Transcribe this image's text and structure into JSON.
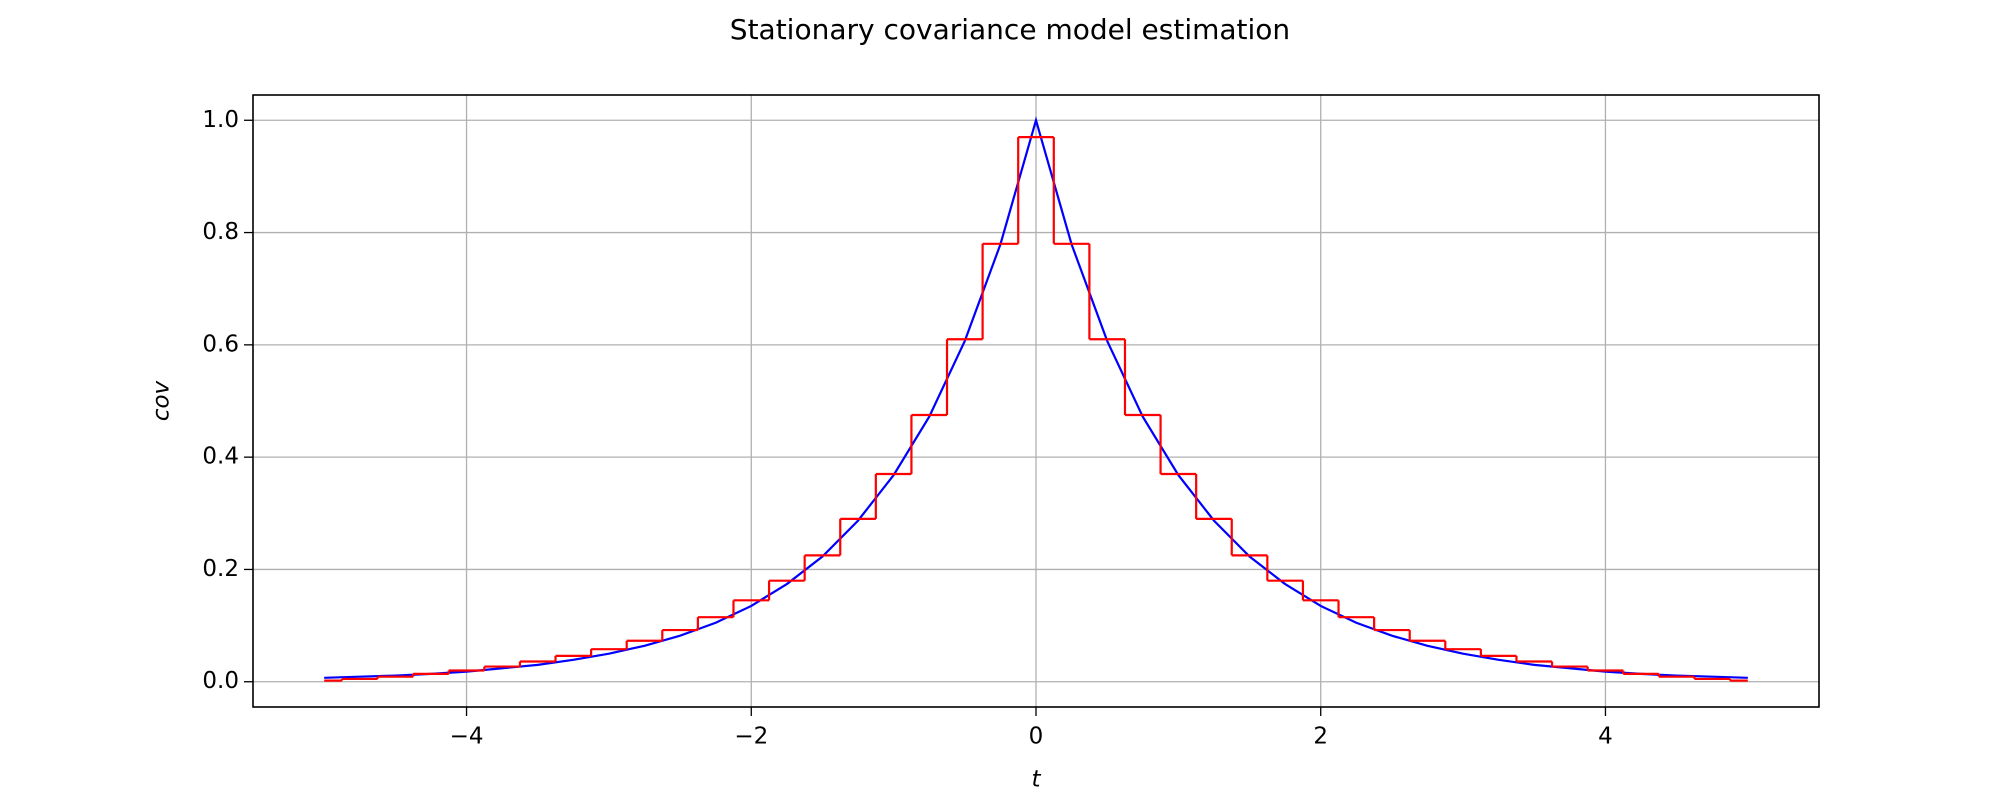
{
  "chart_data": {
    "type": "line",
    "title": "Stationary covariance model estimation",
    "xlabel": "t",
    "ylabel": "cov",
    "xlim": [
      -5.5,
      5.5
    ],
    "ylim": [
      -0.045,
      1.045
    ],
    "xticks": [
      {
        "value": -4,
        "label": "−4"
      },
      {
        "value": -2,
        "label": "−2"
      },
      0,
      2,
      4
    ],
    "yticks": [
      {
        "value": 0,
        "label": "0.0"
      },
      0.2,
      0.4,
      0.6,
      0.8,
      {
        "value": 1,
        "label": "1.0"
      }
    ],
    "grid": true,
    "series": [
      {
        "color": "#0000ff",
        "drawstyle": "default",
        "x": [
          -5,
          -4.75,
          -4.5,
          -4.25,
          -4,
          -3.75,
          -3.5,
          -3.25,
          -3,
          -2.75,
          -2.5,
          -2.25,
          -2,
          -1.75,
          -1.5,
          -1.25,
          -1,
          -0.75,
          -0.5,
          -0.25,
          0,
          0.25,
          0.5,
          0.75,
          1,
          1.25,
          1.5,
          1.75,
          2,
          2.25,
          2.5,
          2.75,
          3,
          3.25,
          3.5,
          3.75,
          4,
          4.25,
          4.5,
          4.75,
          5
        ],
        "values": [
          0.007,
          0.009,
          0.011,
          0.014,
          0.018,
          0.024,
          0.03,
          0.039,
          0.05,
          0.064,
          0.082,
          0.105,
          0.135,
          0.174,
          0.223,
          0.287,
          0.368,
          0.472,
          0.607,
          0.779,
          1,
          0.779,
          0.607,
          0.472,
          0.368,
          0.287,
          0.223,
          0.174,
          0.135,
          0.105,
          0.082,
          0.064,
          0.05,
          0.039,
          0.03,
          0.024,
          0.018,
          0.014,
          0.011,
          0.009,
          0.007
        ]
      },
      {
        "color": "#ff0000",
        "drawstyle": "steps-mid",
        "x": [
          -5,
          -4.75,
          -4.5,
          -4.25,
          -4,
          -3.75,
          -3.5,
          -3.25,
          -3,
          -2.75,
          -2.5,
          -2.25,
          -2,
          -1.75,
          -1.5,
          -1.25,
          -1,
          -0.75,
          -0.5,
          -0.25,
          0,
          0.25,
          0.5,
          0.75,
          1,
          1.25,
          1.5,
          1.75,
          2,
          2.25,
          2.5,
          2.75,
          3,
          3.25,
          3.5,
          3.75,
          4,
          4.25,
          4.5,
          4.75,
          5
        ],
        "values": [
          0.002,
          0.005,
          0.009,
          0.014,
          0.02,
          0.027,
          0.036,
          0.046,
          0.058,
          0.073,
          0.092,
          0.115,
          0.145,
          0.18,
          0.225,
          0.29,
          0.37,
          0.475,
          0.61,
          0.78,
          0.97,
          0.78,
          0.61,
          0.475,
          0.37,
          0.29,
          0.225,
          0.18,
          0.145,
          0.115,
          0.092,
          0.073,
          0.058,
          0.046,
          0.036,
          0.027,
          0.02,
          0.014,
          0.009,
          0.005,
          0.002
        ]
      }
    ]
  }
}
